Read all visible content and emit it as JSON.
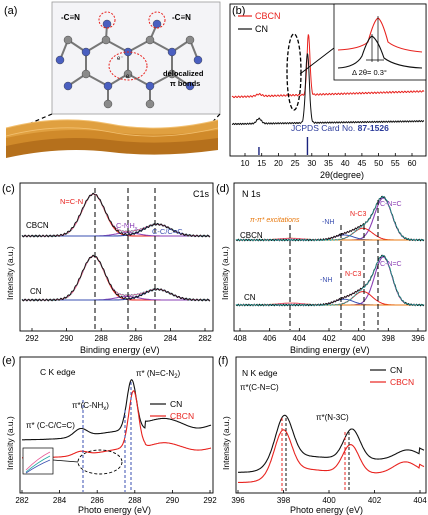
{
  "colors": {
    "black": "#111111",
    "red": "#e8231f",
    "blue": "#3a4fb0",
    "purple": "#8a3fb5",
    "teal": "#1fa6a0",
    "pink": "#e85a96",
    "orange": "#e87a10",
    "film": "#c47a1e",
    "atomC": "#8a8a8a",
    "atomN": "#4a5fc0"
  },
  "panels": {
    "a": {
      "label": "(a)",
      "cn_left": "-C≡N",
      "cn_right": "-C≡N",
      "e_label": "e⁻",
      "deloc_line1": "delocalized",
      "deloc_line2": "π bonds"
    },
    "b": {
      "label": "(b)",
      "legend": [
        "CBCN",
        "CN"
      ],
      "xlabel": "2θ(degree)",
      "ref": "JCPDS Card No. ",
      "ref_num": "87-1526",
      "inset_delta": "Δ 2θ= 0.3°",
      "ticks": [
        "10",
        "15",
        "20",
        "25",
        "30",
        "35",
        "40",
        "45",
        "50",
        "55",
        "60"
      ]
    },
    "c": {
      "label": "(c)",
      "corner": "C1s",
      "ylabel": "Intensity (a.u.)",
      "xlabel": "Binding energy (eV)",
      "s_top": "CBCN",
      "s_bot": "CN",
      "peak1": "N=C-N",
      "peak2": "C-NH",
      "peak2_sub": "x",
      "peak3": "C-C/C=C",
      "ticks": [
        "292",
        "290",
        "288",
        "286",
        "284",
        "282"
      ]
    },
    "d": {
      "label": "(d)",
      "corner": "N 1s",
      "ylabel": "Intensity (a.u.)",
      "xlabel": "Binding energy (eV)",
      "s_top": "CBCN",
      "s_bot": "CN",
      "pipi": "π-π* excitations",
      "nh": "-NH",
      "n3c": "N-C3",
      "cnc": "C-N=C",
      "ticks": [
        "408",
        "406",
        "404",
        "402",
        "400",
        "398",
        "396"
      ]
    },
    "e": {
      "label": "(e)",
      "title": "C K edge",
      "ylabel": "Intensity (a.u.)",
      "xlabel": "Photo energy (eV)",
      "legend": [
        "CN",
        "CBCN"
      ],
      "ann1": "π* (N=C-N",
      "ann1_sub": "2",
      "ann1_end": ")",
      "ann2": "π*(C-NH",
      "ann2_sub": "x",
      "ann2_end": ")",
      "ann3": "π* (C-C/C=C)",
      "ticks": [
        "282",
        "284",
        "286",
        "288",
        "290",
        "292"
      ]
    },
    "f": {
      "label": "(f)",
      "title": "N K edge",
      "ylabel": "Intensity (a.u.)",
      "xlabel": "Photo energy (eV)",
      "legend": [
        "CN",
        "CBCN"
      ],
      "ann1": "π*(C-N=C)",
      "ann2": "π*(N-3C)",
      "ticks": [
        "396",
        "398",
        "400",
        "402",
        "404"
      ]
    }
  },
  "chart_data": [
    {
      "panel": "b",
      "type": "line",
      "xlabel": "2θ(degree)",
      "xlim": [
        5,
        62
      ],
      "series": [
        {
          "name": "CBCN",
          "x": [
            5,
            10,
            13,
            20,
            25,
            27.4,
            27.7,
            28,
            30,
            40,
            60
          ],
          "y": [
            0.62,
            0.6,
            0.62,
            0.63,
            0.66,
            0.85,
            1.0,
            0.7,
            0.6,
            0.58,
            0.57
          ]
        },
        {
          "name": "CN",
          "x": [
            5,
            10,
            13,
            20,
            25,
            27.4,
            27.7,
            28,
            30,
            40,
            60
          ],
          "y": [
            0.12,
            0.13,
            0.2,
            0.16,
            0.22,
            0.45,
            0.62,
            0.3,
            0.14,
            0.1,
            0.09
          ]
        }
      ],
      "annotations": [
        "Δ 2θ= 0.3°",
        "JCPDS Card No. 87-1526"
      ]
    },
    {
      "panel": "c",
      "type": "line",
      "xlabel": "Binding energy (eV)",
      "ylabel": "Intensity (a.u.)",
      "xlim": [
        292,
        282
      ],
      "peaks_eV": [
        288.2,
        286.4,
        284.8
      ],
      "series": [
        "CBCN",
        "CN"
      ]
    },
    {
      "panel": "d",
      "type": "line",
      "xlabel": "Binding energy (eV)",
      "ylabel": "Intensity (a.u.)",
      "xlim": [
        408,
        396
      ],
      "peaks_eV": [
        404.5,
        401.2,
        399.9,
        398.7
      ],
      "series": [
        "CBCN",
        "CN"
      ]
    },
    {
      "panel": "e",
      "type": "line",
      "xlabel": "Photo energy (eV)",
      "ylabel": "Intensity (a.u.)",
      "xlim": [
        282,
        292
      ],
      "peaks_eV": [
        285.1,
        287.4,
        287.9
      ],
      "series": [
        "CN",
        "CBCN"
      ]
    },
    {
      "panel": "f",
      "type": "line",
      "xlabel": "Photo energy (eV)",
      "ylabel": "Intensity (a.u.)",
      "xlim": [
        396,
        404
      ],
      "peaks_eV": [
        398,
        400.9
      ],
      "series": [
        "CN",
        "CBCN"
      ]
    }
  ]
}
